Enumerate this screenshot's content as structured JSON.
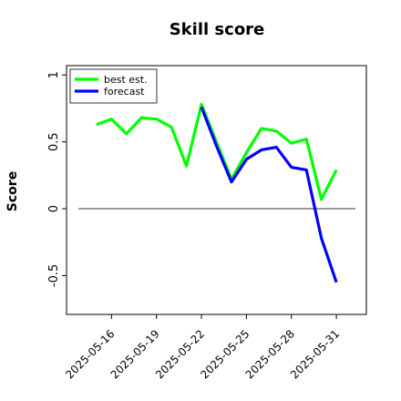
{
  "chart_data": {
    "type": "line",
    "title": "Skill score",
    "ylabel": "Score",
    "x": [
      "2025-05-15",
      "2025-05-16",
      "2025-05-17",
      "2025-05-18",
      "2025-05-19",
      "2025-05-20",
      "2025-05-21",
      "2025-05-22",
      "2025-05-23",
      "2025-05-24",
      "2025-05-25",
      "2025-05-26",
      "2025-05-27",
      "2025-05-28",
      "2025-05-29",
      "2025-05-30",
      "2025-05-31"
    ],
    "series": [
      {
        "name": "best est.",
        "color": "#00ff00",
        "values": [
          0.63,
          0.67,
          0.56,
          0.68,
          0.67,
          0.61,
          0.32,
          0.78,
          0.5,
          0.22,
          0.42,
          0.6,
          0.58,
          0.49,
          0.52,
          0.07,
          0.29
        ]
      },
      {
        "name": "forecast",
        "color": "#0000ff",
        "values": [
          null,
          null,
          null,
          null,
          null,
          null,
          null,
          0.76,
          0.47,
          0.2,
          0.37,
          0.44,
          0.46,
          0.31,
          0.29,
          -0.22,
          -0.55
        ]
      }
    ],
    "xlim": [
      "2025-05-13",
      "2025-06-02"
    ],
    "xticks": [
      "2025-05-16",
      "2025-05-19",
      "2025-05-22",
      "2025-05-25",
      "2025-05-28",
      "2025-05-31"
    ],
    "highlighted_xtick": "2025-05-22",
    "highlight_color": "#008000",
    "ylim": [
      -0.79,
      1.07
    ],
    "yticks": [
      -0.5,
      0.0,
      0.5,
      1.0
    ],
    "hline": 0,
    "legend": "upper left"
  }
}
